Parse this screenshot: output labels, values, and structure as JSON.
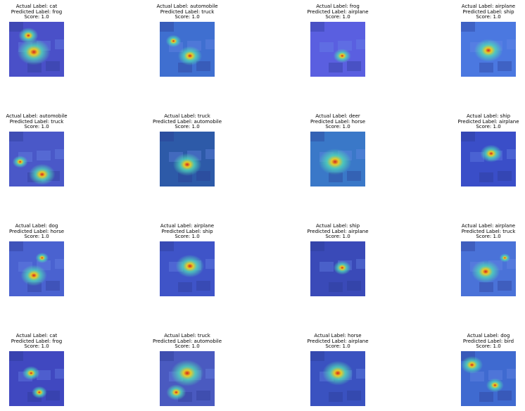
{
  "panels": [
    {
      "actual": "Actual Label: cat",
      "predicted": "Predicted Label: frog",
      "score": "Score: 1.0",
      "base": "#4a50c8",
      "hot": [
        [
          0.45,
          0.55,
          0.3
        ],
        [
          0.35,
          0.25,
          0.18
        ]
      ]
    },
    {
      "actual": "Actual Label: automobile",
      "predicted": "Predicted Label: truck",
      "score": "Score: 1.0",
      "base": "#3f6fd0",
      "hot": [
        [
          0.55,
          0.62,
          0.22
        ],
        [
          0.25,
          0.35,
          0.14
        ]
      ]
    },
    {
      "actual": "Actual Label: frog",
      "predicted": "Predicted Label: airplane",
      "score": "Score: 1.0",
      "base": "#5a5fe0",
      "hot": [
        [
          0.58,
          0.62,
          0.16
        ]
      ]
    },
    {
      "actual": "Actual Label: airplane",
      "predicted": "Predicted Label: ship",
      "score": "Score: 1.0",
      "base": "#4b78e0",
      "hot": [
        [
          0.5,
          0.52,
          0.26
        ]
      ]
    },
    {
      "actual": "Actual Label: automobile",
      "predicted": "Predicted Label: truck",
      "score": "Score: 1.0",
      "base": "#4a58c8",
      "hot": [
        [
          0.6,
          0.78,
          0.24
        ],
        [
          0.2,
          0.55,
          0.14
        ]
      ]
    },
    {
      "actual": "Actual Label: truck",
      "predicted": "Predicted Label: automobile",
      "score": "Score: 1.0",
      "base": "#2d5aa8",
      "hot": [
        [
          0.5,
          0.6,
          0.26
        ]
      ]
    },
    {
      "actual": "Actual Label: deer",
      "predicted": "Predicted Label: horse",
      "score": "Score: 1.0",
      "base": "#3a78c8",
      "hot": [
        [
          0.45,
          0.55,
          0.3
        ]
      ]
    },
    {
      "actual": "Actual Label: ship",
      "predicted": "Predicted Label: airplane",
      "score": "Score: 1.0",
      "base": "#3a4ec8",
      "hot": [
        [
          0.55,
          0.4,
          0.2
        ]
      ]
    },
    {
      "actual": "Actual Label: dog",
      "predicted": "Predicted Label: horse",
      "score": "Score: 1.0",
      "base": "#4a62d0",
      "hot": [
        [
          0.45,
          0.62,
          0.24
        ],
        [
          0.6,
          0.3,
          0.12
        ]
      ]
    },
    {
      "actual": "Actual Label: airplane",
      "predicted": "Predicted Label: ship",
      "score": "Score: 1.0",
      "base": "#3f54c8",
      "hot": [
        [
          0.55,
          0.45,
          0.26
        ]
      ]
    },
    {
      "actual": "Actual Label: ship",
      "predicted": "Predicted Label: airplane",
      "score": "Score: 1.0",
      "base": "#3a4ab8",
      "hot": [
        [
          0.58,
          0.48,
          0.16
        ]
      ]
    },
    {
      "actual": "Actual Label: airplane",
      "predicted": "Predicted Label: truck",
      "score": "Score: 1.0",
      "base": "#4a72d8",
      "hot": [
        [
          0.45,
          0.55,
          0.26
        ],
        [
          0.8,
          0.3,
          0.1
        ]
      ]
    },
    {
      "actual": "Actual Label: cat",
      "predicted": "Predicted Label: frog",
      "score": "Score: 1.0",
      "base": "#4048c0",
      "hot": [
        [
          0.4,
          0.4,
          0.16
        ],
        [
          0.55,
          0.75,
          0.14
        ]
      ]
    },
    {
      "actual": "Actual Label: truck",
      "predicted": "Predicted Label: automobile",
      "score": "Score: 1.0",
      "base": "#4a5ac0",
      "hot": [
        [
          0.5,
          0.4,
          0.3
        ],
        [
          0.3,
          0.75,
          0.18
        ]
      ]
    },
    {
      "actual": "Actual Label: horse",
      "predicted": "Predicted Label: airplane",
      "score": "Score: 1.0",
      "base": "#3a52c0",
      "hot": [
        [
          0.5,
          0.4,
          0.28
        ]
      ]
    },
    {
      "actual": "Actual Label: dog",
      "predicted": "Predicted Label: bird",
      "score": "Score: 1.0",
      "base": "#3f6ad0",
      "hot": [
        [
          0.62,
          0.62,
          0.16
        ],
        [
          0.2,
          0.25,
          0.2
        ]
      ]
    }
  ]
}
